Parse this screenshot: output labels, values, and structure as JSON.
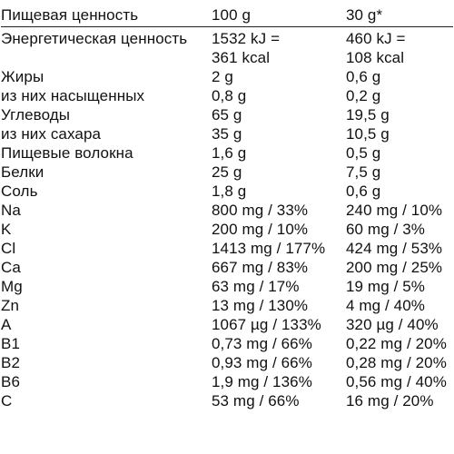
{
  "header": {
    "label": "Пищевая ценность",
    "col_100": "100 g",
    "col_30": "30 g*"
  },
  "energy": {
    "label": "Энергетическая ценность",
    "v100_line1": "1532 kJ =",
    "v100_line2": "361 kcal",
    "v30_line1": "460 kJ =",
    "v30_line2": "108 kcal"
  },
  "rows": [
    {
      "label": "Жиры",
      "v100": "2 g",
      "v30": "0,6 g"
    },
    {
      "label": "из них насыщенных",
      "v100": "0,8 g",
      "v30": "0,2 g"
    },
    {
      "label": "Углеводы",
      "v100": "65 g",
      "v30": "19,5 g"
    },
    {
      "label": "из них сахара",
      "v100": "35 g",
      "v30": "10,5 g"
    },
    {
      "label": "Пищевые волокна",
      "v100": "1,6 g",
      "v30": "0,5 g"
    },
    {
      "label": "Белки",
      "v100": "25 g",
      "v30": "7,5 g"
    },
    {
      "label": "Соль",
      "v100": "1,8 g",
      "v30": "0,6 g"
    },
    {
      "label": "Na",
      "v100": "800 mg / 33%",
      "v30": "240 mg / 10%"
    },
    {
      "label": "K",
      "v100": "200 mg / 10%",
      "v30": "60 mg / 3%"
    },
    {
      "label": "Cl",
      "v100": "1413 mg / 177%",
      "v30": "424 mg / 53%"
    },
    {
      "label": "Ca",
      "v100": "667 mg / 83%",
      "v30": "200 mg / 25%"
    },
    {
      "label": "Mg",
      "v100": "63 mg / 17%",
      "v30": "19 mg / 5%"
    },
    {
      "label": "Zn",
      "v100": "13 mg / 130%",
      "v30": "4 mg / 40%"
    },
    {
      "label": "A",
      "v100": "1067 µg / 133%",
      "v30": "320 µg / 40%"
    },
    {
      "label": "B1",
      "v100": "0,73 mg / 66%",
      "v30": "0,22 mg / 20%"
    },
    {
      "label": "B2",
      "v100": "0,93 mg / 66%",
      "v30": "0,28 mg / 20%"
    },
    {
      "label": "B6",
      "v100": "1,9 mg / 136%",
      "v30": "0,56 mg / 40%"
    },
    {
      "label": "C",
      "v100": "53 mg / 66%",
      "v30": "16 mg / 20%"
    }
  ]
}
